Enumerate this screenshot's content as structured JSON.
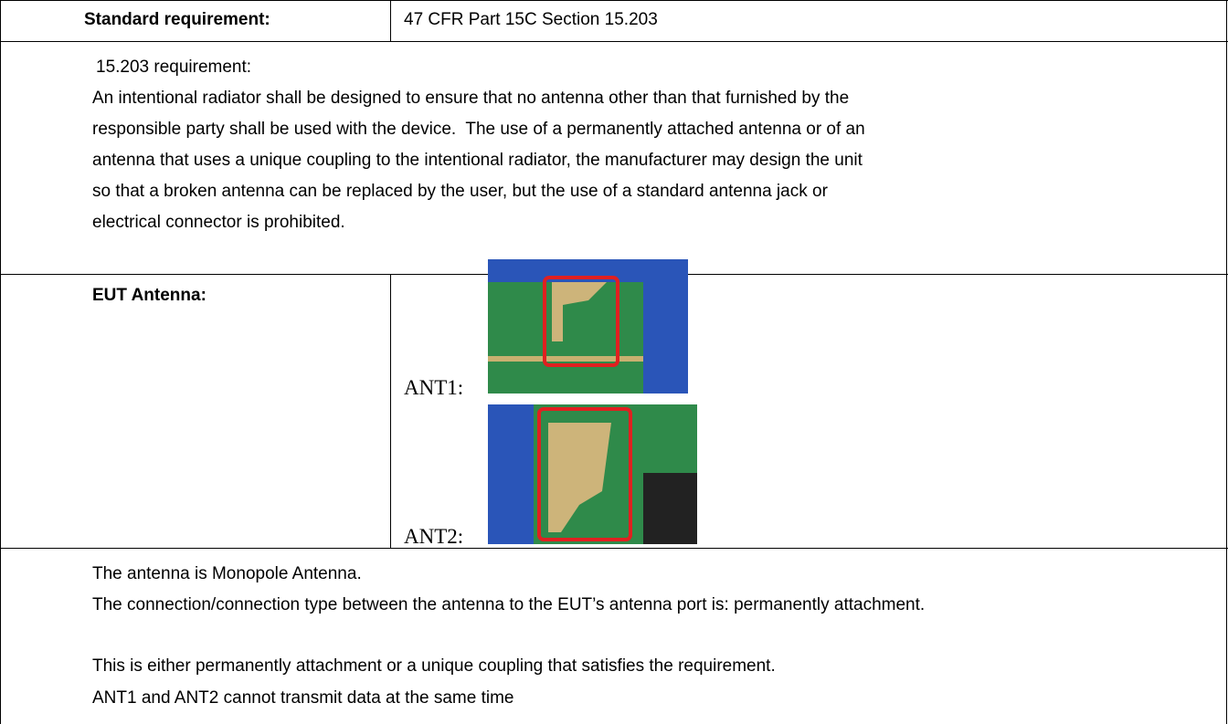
{
  "header": {
    "label": "Standard requirement:",
    "value": "47 CFR Part 15C Section 15.203"
  },
  "requirement": {
    "title": "15.203 requirement:",
    "lines": [
      "An intentional radiator shall be designed to ensure that no antenna other than that furnished by the",
      "responsible party shall be used with the device.  The use of a permanently attached antenna or of an",
      "antenna that uses a unique coupling to the intentional radiator, the manufacturer may design the unit",
      "so that a broken antenna can be replaced by the user, but the use of a standard antenna jack or",
      "electrical connector is prohibited."
    ]
  },
  "antenna": {
    "label": "EUT Antenna:",
    "items": [
      {
        "label": "ANT1:"
      },
      {
        "label": "ANT2:"
      }
    ]
  },
  "notes": [
    "The antenna is Monopole Antenna.",
    "The connection/connection type between the antenna to the EUT’s antenna port is: permanently attachment.",
    "This is either permanently attachment or a unique coupling that satisfies the requirement.",
    "ANT1 and ANT2 cannot transmit data at the same time"
  ]
}
